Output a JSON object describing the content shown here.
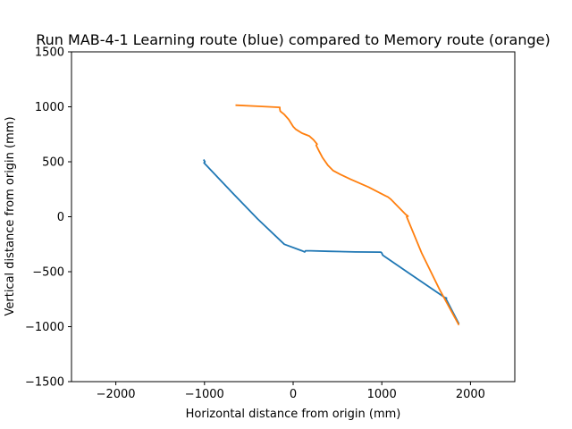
{
  "chart_data": {
    "type": "line",
    "title": "Run MAB-4-1 Learning route (blue) compared to Memory route (orange)",
    "xlabel": "Horizontal distance from origin (mm)",
    "ylabel": "Vertical distance from origin (mm)",
    "xlim": [
      -2500,
      2500
    ],
    "ylim": [
      -1500,
      1500
    ],
    "xticks": [
      -2000,
      -1000,
      0,
      1000,
      2000
    ],
    "yticks": [
      -1500,
      -1000,
      -500,
      0,
      500,
      1000,
      1500
    ],
    "xtick_labels": [
      "−2000",
      "−1000",
      "0",
      "1000",
      "2000"
    ],
    "ytick_labels": [
      "−1500",
      "−1000",
      "−500",
      "0",
      "500",
      "1000",
      "1500"
    ],
    "grid": false,
    "legend": "none",
    "series": [
      {
        "color": "#1f77b4",
        "x": [
          -1010,
          -995,
          -1005,
          -700,
          -400,
          -100,
          100,
          130,
          140,
          200,
          400,
          700,
          990,
          1000,
          1010,
          1300,
          1710,
          1730,
          1720,
          1870
        ],
        "y": [
          520,
          500,
          490,
          230,
          -20,
          -250,
          -310,
          -320,
          -310,
          -310,
          -315,
          -320,
          -322,
          -330,
          -350,
          -510,
          -735,
          -740,
          -740,
          -975
        ]
      },
      {
        "color": "#ff7f0e",
        "x": [
          -650,
          -400,
          -150,
          -150,
          -145,
          -100,
          -50,
          0,
          30,
          100,
          180,
          230,
          270,
          260,
          290,
          330,
          390,
          450,
          530,
          650,
          850,
          1040,
          1070,
          1100,
          1270,
          1295,
          1280,
          1450,
          1650,
          1870
        ],
        "y": [
          1015,
          1005,
          995,
          980,
          960,
          930,
          885,
          820,
          795,
          760,
          735,
          700,
          660,
          650,
          600,
          540,
          470,
          420,
          385,
          340,
          270,
          190,
          180,
          160,
          20,
          5,
          0,
          -330,
          -660,
          -985
        ]
      }
    ]
  }
}
